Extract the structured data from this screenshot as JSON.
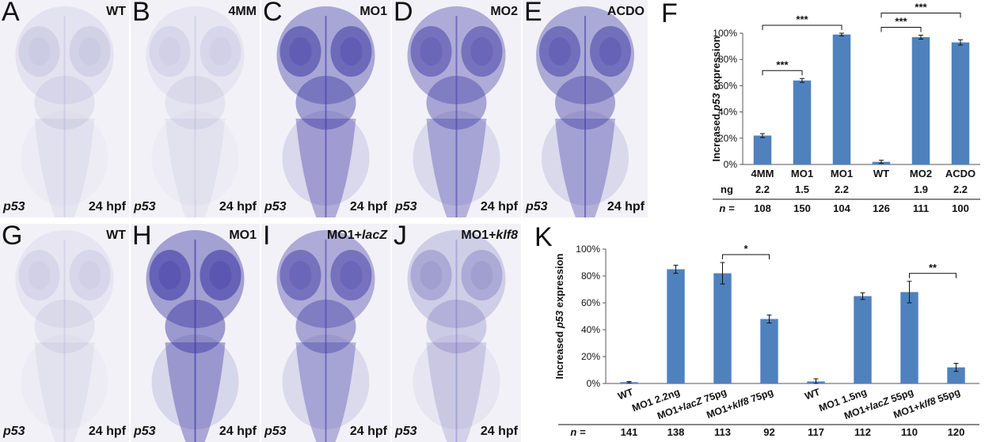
{
  "figure": {
    "panels_top": [
      {
        "label": "A",
        "condition": "WT",
        "gene": "p53",
        "stage": "24 hpf",
        "intensity": 0.15
      },
      {
        "label": "B",
        "condition": "4MM",
        "gene": "p53",
        "stage": "24 hpf",
        "intensity": 0.12
      },
      {
        "label": "C",
        "condition": "MO1",
        "gene": "p53",
        "stage": "24 hpf",
        "intensity": 0.85
      },
      {
        "label": "D",
        "condition": "MO2",
        "gene": "p53",
        "stage": "24 hpf",
        "intensity": 0.8
      },
      {
        "label": "E",
        "condition": "ACDO",
        "gene": "p53",
        "stage": "24 hpf",
        "intensity": 0.82
      }
    ],
    "panels_bottom": [
      {
        "label": "G",
        "condition": "WT",
        "gene": "p53",
        "stage": "24 hpf",
        "intensity": 0.12
      },
      {
        "label": "H",
        "condition": "MO1",
        "gene": "p53",
        "stage": "24 hpf",
        "intensity": 0.9
      },
      {
        "label": "I",
        "condition_parts": [
          "MO1+",
          "lacZ"
        ],
        "gene": "p53",
        "stage": "24 hpf",
        "intensity": 0.8
      },
      {
        "label": "J",
        "condition_parts": [
          "MO1+",
          "klf8"
        ],
        "gene": "p53",
        "stage": "24 hpf",
        "intensity": 0.45
      }
    ]
  },
  "chart_data": [
    {
      "panel": "F",
      "type": "bar",
      "ylabel_parts": [
        "Increased ",
        "p53",
        " expression"
      ],
      "ylim": [
        0,
        100
      ],
      "yticks": [
        "0%",
        "20%",
        "40%",
        "60%",
        "80%",
        "100%"
      ],
      "categories": [
        "4MM",
        "MO1",
        "MO1",
        "WT",
        "MO2",
        "ACDO"
      ],
      "ng_label": "ng",
      "ng": [
        "2.2",
        "1.5",
        "2.2",
        "",
        "1.9",
        "2.2"
      ],
      "n_label": "n =",
      "n": [
        "108",
        "150",
        "104",
        "126",
        "111",
        "100"
      ],
      "values": [
        22,
        64,
        99,
        2,
        97,
        93
      ],
      "errors": [
        1.5,
        1.5,
        1,
        1.2,
        1.5,
        2
      ],
      "significance": [
        {
          "from": 0,
          "to": 1,
          "label": "***"
        },
        {
          "from": 0,
          "to": 2,
          "label": "***"
        },
        {
          "from": 3,
          "to": 4,
          "label": "***"
        },
        {
          "from": 3,
          "to": 5,
          "label": "***"
        }
      ],
      "bar_color": "#4f81bd"
    },
    {
      "panel": "K",
      "type": "bar",
      "ylabel_parts": [
        "Increased ",
        "p53",
        " expression"
      ],
      "ylim": [
        0,
        100
      ],
      "yticks": [
        "0%",
        "20%",
        "40%",
        "60%",
        "80%",
        "100%"
      ],
      "categories": [
        [
          "WT"
        ],
        [
          "MO1 2.2ng"
        ],
        [
          "MO1+",
          "lacZ",
          " 75pg"
        ],
        [
          "MO1+",
          "klf8",
          " 75pg"
        ],
        [
          "WT"
        ],
        [
          "MO1 1.5ng"
        ],
        [
          "MO1+",
          "lacZ",
          " 55pg"
        ],
        [
          "MO1+",
          "klf8",
          " 55pg"
        ]
      ],
      "n_label": "n =",
      "n": [
        "141",
        "138",
        "113",
        "92",
        "117",
        "112",
        "110",
        "120"
      ],
      "values": [
        1,
        85,
        82,
        48,
        1.5,
        65,
        68,
        12
      ],
      "errors": [
        0.5,
        3,
        8,
        3,
        2,
        2.5,
        8,
        3
      ],
      "significance": [
        {
          "from": 2,
          "to": 3,
          "label": "*"
        },
        {
          "from": 6,
          "to": 7,
          "label": "**"
        }
      ],
      "bar_color": "#4f81bd"
    }
  ]
}
